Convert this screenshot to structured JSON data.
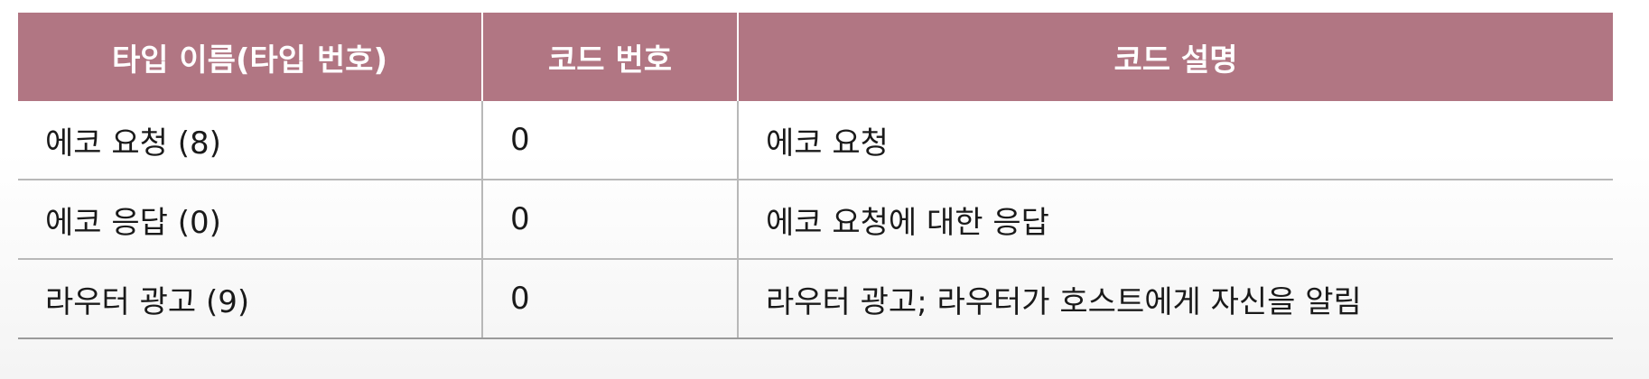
{
  "table": {
    "headers": [
      "타입 이름(타입 번호)",
      "코드 번호",
      "코드 설명"
    ],
    "rows": [
      [
        "에코 요청 (8)",
        "0",
        "에코 요청"
      ],
      [
        "에코 응답 (0)",
        "0",
        "에코 요청에 대한 응답"
      ],
      [
        "라우터 광고 (9)",
        "0",
        "라우터 광고; 라우터가 호스트에게 자신을 알림"
      ]
    ]
  },
  "colors": {
    "header_background": "#b17683",
    "header_text": "#ffffff",
    "row_divider": "#b8b8b8"
  }
}
